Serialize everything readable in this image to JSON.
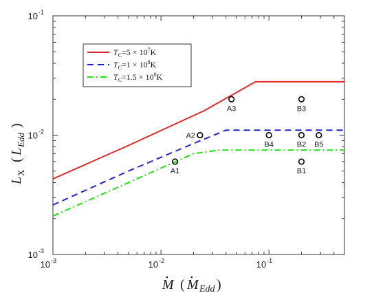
{
  "chart_data": {
    "type": "line",
    "xscale": "log",
    "yscale": "log",
    "xlim": [
      0.001,
      0.5
    ],
    "ylim": [
      0.001,
      0.1
    ],
    "xlabel": "Ṁ (Ṁ_Edd)",
    "ylabel": "L_X (L_Edd)",
    "x_ticks": [
      {
        "value": 0.001,
        "base": "10",
        "exp": "-3"
      },
      {
        "value": 0.01,
        "base": "10",
        "exp": "-2"
      },
      {
        "value": 0.1,
        "base": "10",
        "exp": "-1"
      }
    ],
    "y_ticks": [
      {
        "value": 0.001,
        "base": "10",
        "exp": "-3"
      },
      {
        "value": 0.01,
        "base": "10",
        "exp": "-2"
      },
      {
        "value": 0.1,
        "base": "10",
        "exp": "-1"
      }
    ],
    "grid": false,
    "legend_position": "upper-left",
    "series": [
      {
        "name": "T_C=5×10^7K",
        "color": "#e0292b",
        "style": "solid",
        "x": [
          0.001,
          0.005,
          0.025,
          0.075,
          0.5
        ],
        "y": [
          0.0043,
          0.0082,
          0.016,
          0.028,
          0.028
        ]
      },
      {
        "name": "T_C=1×10^8K",
        "color": "#1f22c8",
        "style": "dashed",
        "x": [
          0.001,
          0.005,
          0.02,
          0.04,
          0.5
        ],
        "y": [
          0.0026,
          0.005,
          0.0085,
          0.011,
          0.011
        ]
      },
      {
        "name": "T_C=1.5×10^8K",
        "color": "#22e010",
        "style": "dashdot",
        "x": [
          0.001,
          0.005,
          0.02,
          0.035,
          0.5
        ],
        "y": [
          0.0021,
          0.004,
          0.007,
          0.0075,
          0.0075
        ]
      }
    ],
    "points": [
      {
        "label": "A1",
        "x": 0.0135,
        "y": 0.006,
        "label_pos": "below"
      },
      {
        "label": "A2",
        "x": 0.023,
        "y": 0.01,
        "label_pos": "left"
      },
      {
        "label": "A3",
        "x": 0.045,
        "y": 0.02,
        "label_pos": "below"
      },
      {
        "label": "B1",
        "x": 0.2,
        "y": 0.006,
        "label_pos": "below"
      },
      {
        "label": "B2",
        "x": 0.2,
        "y": 0.01,
        "label_pos": "below"
      },
      {
        "label": "B3",
        "x": 0.2,
        "y": 0.02,
        "label_pos": "below"
      },
      {
        "label": "B4",
        "x": 0.1,
        "y": 0.01,
        "label_pos": "below"
      },
      {
        "label": "B5",
        "x": 0.29,
        "y": 0.01,
        "label_pos": "below"
      }
    ]
  }
}
